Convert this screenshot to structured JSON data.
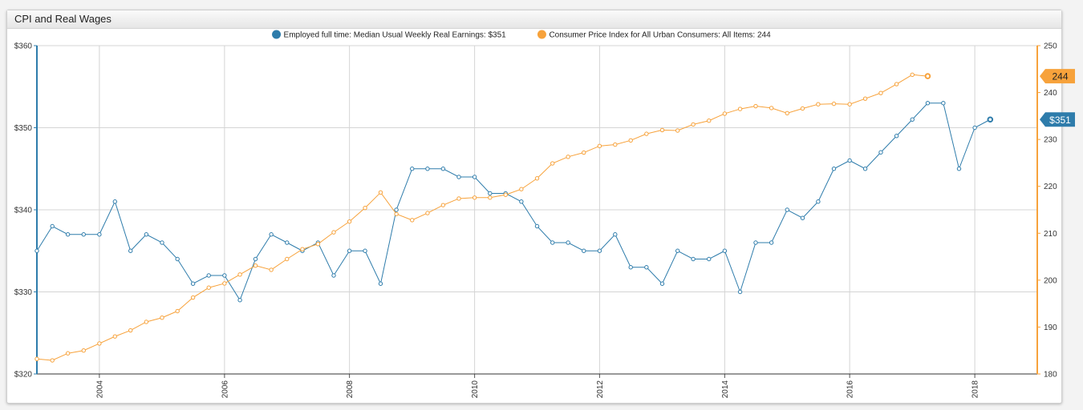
{
  "panel": {
    "title": "CPI and Real Wages"
  },
  "chart_data": {
    "type": "line",
    "grid": true,
    "legend_position": "top-center",
    "x_axis": {
      "type": "date",
      "range": [
        "2003-01-01",
        "2019-01-01"
      ],
      "tick_labels": [
        "2004",
        "2006",
        "2008",
        "2010",
        "2012",
        "2014",
        "2016",
        "2018"
      ]
    },
    "y_left": {
      "range": [
        320,
        360
      ],
      "tick_labels": [
        "$360",
        "$350",
        "$340",
        "$330",
        "$320"
      ]
    },
    "y_right": {
      "range": [
        180,
        250
      ],
      "tick_labels": [
        "250",
        "240",
        "230",
        "220",
        "210",
        "200",
        "190",
        "180"
      ]
    },
    "series": [
      {
        "name": "Employed full time: Median Usual Weekly Real Earnings: $351",
        "color": "#2e7cab",
        "axis": "left",
        "last_value_label": "$351",
        "x": [
          "2003-01-01",
          "2003-04-01",
          "2003-07-01",
          "2003-10-01",
          "2004-01-01",
          "2004-04-01",
          "2004-07-01",
          "2004-10-01",
          "2005-01-01",
          "2005-04-01",
          "2005-07-01",
          "2005-10-01",
          "2006-01-01",
          "2006-04-01",
          "2006-07-01",
          "2006-10-01",
          "2007-01-01",
          "2007-04-01",
          "2007-07-01",
          "2007-10-01",
          "2008-01-01",
          "2008-04-01",
          "2008-07-01",
          "2008-10-01",
          "2009-01-01",
          "2009-04-01",
          "2009-07-01",
          "2009-10-01",
          "2010-01-01",
          "2010-04-01",
          "2010-07-01",
          "2010-10-01",
          "2011-01-01",
          "2011-04-01",
          "2011-07-01",
          "2011-10-01",
          "2012-01-01",
          "2012-04-01",
          "2012-07-01",
          "2012-10-01",
          "2013-01-01",
          "2013-04-01",
          "2013-07-01",
          "2013-10-01",
          "2014-01-01",
          "2014-04-01",
          "2014-07-01",
          "2014-10-01",
          "2015-01-01",
          "2015-04-01",
          "2015-07-01",
          "2015-10-01",
          "2016-01-01",
          "2016-04-01",
          "2016-07-01",
          "2016-10-01",
          "2017-01-01",
          "2017-04-01",
          "2017-07-01",
          "2017-10-01",
          "2018-01-01",
          "2018-04-01"
        ],
        "y": [
          335,
          338,
          337,
          337,
          337,
          341,
          335,
          337,
          336,
          334,
          331,
          332,
          332,
          329,
          334,
          337,
          336,
          335,
          336,
          332,
          335,
          335,
          331,
          340,
          345,
          345,
          345,
          344,
          344,
          342,
          342,
          341,
          338,
          336,
          336,
          335,
          335,
          337,
          333,
          333,
          331,
          335,
          334,
          334,
          335,
          330,
          336,
          336,
          340,
          339,
          341,
          345,
          346,
          345,
          347,
          349,
          351,
          353,
          353,
          345,
          350,
          351
        ]
      },
      {
        "name": "Consumer Price Index for All Urban Consumers: All Items: 244",
        "color": "#f7a23b",
        "axis": "right",
        "last_value_label": "244",
        "x": [
          "2003-01-01",
          "2003-04-01",
          "2003-07-01",
          "2003-10-01",
          "2004-01-01",
          "2004-04-01",
          "2004-07-01",
          "2004-10-01",
          "2005-01-01",
          "2005-04-01",
          "2005-07-01",
          "2005-10-01",
          "2006-01-01",
          "2006-04-01",
          "2006-07-01",
          "2006-10-01",
          "2007-01-01",
          "2007-04-01",
          "2007-07-01",
          "2007-10-01",
          "2008-01-01",
          "2008-04-01",
          "2008-07-01",
          "2008-10-01",
          "2009-01-01",
          "2009-04-01",
          "2009-07-01",
          "2009-10-01",
          "2010-01-01",
          "2010-04-01",
          "2010-07-01",
          "2010-10-01",
          "2011-01-01",
          "2011-04-01",
          "2011-07-01",
          "2011-10-01",
          "2012-01-01",
          "2012-04-01",
          "2012-07-01",
          "2012-10-01",
          "2013-01-01",
          "2013-04-01",
          "2013-07-01",
          "2013-10-01",
          "2014-01-01",
          "2014-04-01",
          "2014-07-01",
          "2014-10-01",
          "2015-01-01",
          "2015-04-01",
          "2015-07-01",
          "2015-10-01",
          "2016-01-01",
          "2016-04-01",
          "2016-07-01",
          "2016-10-01",
          "2017-01-01",
          "2017-04-01"
        ],
        "y": [
          183.2,
          182.9,
          184.4,
          185.0,
          186.5,
          188.0,
          189.3,
          191.1,
          192.0,
          193.4,
          196.3,
          198.4,
          199.3,
          201.2,
          203.1,
          202.2,
          204.5,
          206.6,
          207.7,
          210.2,
          212.5,
          215.4,
          218.7,
          214.1,
          212.8,
          214.3,
          216.0,
          217.4,
          217.6,
          217.6,
          218.2,
          219.4,
          221.7,
          224.9,
          226.3,
          227.2,
          228.6,
          228.9,
          229.8,
          231.2,
          232.0,
          231.9,
          233.2,
          234.0,
          235.5,
          236.5,
          237.1,
          236.7,
          235.6,
          236.6,
          237.5,
          237.6,
          237.5,
          238.7,
          239.9,
          241.8,
          243.8,
          243.5
        ]
      }
    ]
  }
}
